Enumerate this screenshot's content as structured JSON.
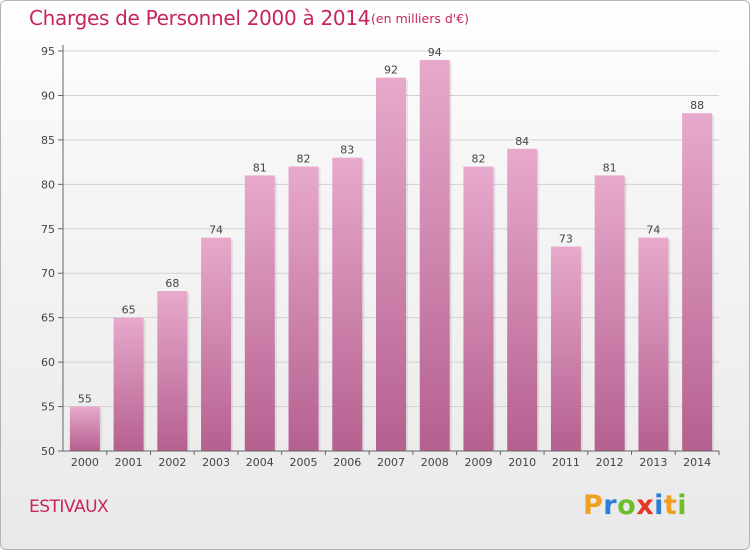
{
  "chart_data": {
    "type": "bar",
    "title": "Charges de Personnel 2000 à 2014",
    "subtitle": "(en milliers d'€)",
    "categories": [
      "2000",
      "2001",
      "2002",
      "2003",
      "2004",
      "2005",
      "2006",
      "2007",
      "2008",
      "2009",
      "2010",
      "2011",
      "2012",
      "2013",
      "2014"
    ],
    "values": [
      55,
      65,
      68,
      74,
      81,
      82,
      83,
      92,
      94,
      82,
      84,
      73,
      81,
      74,
      88
    ],
    "ylim": [
      50,
      95
    ],
    "yticks": [
      50,
      55,
      60,
      65,
      70,
      75,
      80,
      85,
      90,
      95
    ],
    "grid": true,
    "bar_color": "#c76fa3"
  },
  "footer": {
    "commune": "ESTIVAUX",
    "logo": {
      "text": "Proxiti"
    }
  },
  "colors": {
    "title": "#c8255a",
    "bar_top": "#e7a9cc",
    "bar_bottom": "#b5608f"
  }
}
